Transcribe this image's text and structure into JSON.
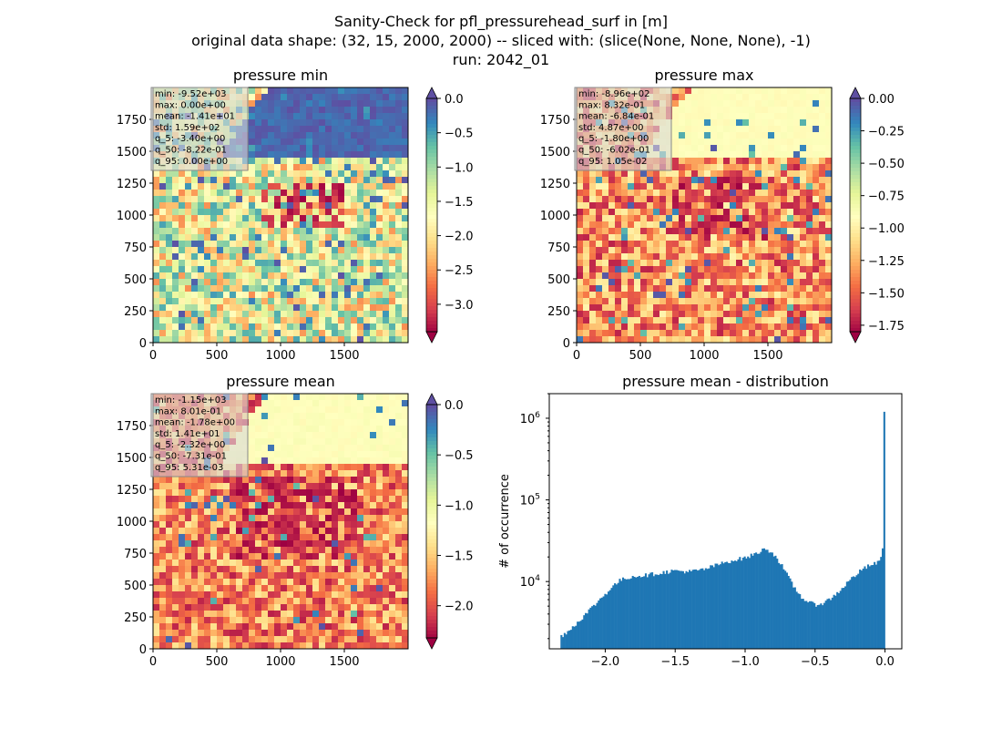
{
  "figure": {
    "suptitle_lines": [
      "Sanity-Check for pfl_pressurehead_surf in [m]",
      "original data shape: (32, 15, 2000, 2000) -- sliced with: (slice(None, None, None), -1)",
      "run: 2042_01"
    ]
  },
  "chart_data": [
    {
      "type": "heatmap",
      "title": "pressure min",
      "colormap": "Spectral",
      "xticks": [
        0,
        500,
        1000,
        1500
      ],
      "yticks": [
        0,
        250,
        500,
        750,
        1000,
        1250,
        1500,
        1750
      ],
      "xlim": [
        0,
        2000
      ],
      "ylim": [
        0,
        2000
      ],
      "colorbar_ticks": [
        0.0,
        -0.5,
        -1.0,
        -1.5,
        -2.0,
        -2.5,
        -3.0
      ],
      "colorbar_tick_labels": [
        "0.0",
        "−0.5",
        "−1.0",
        "−1.5",
        "−2.0",
        "−2.5",
        "−3.0"
      ],
      "colorbar_range": [
        -3.4,
        0.0
      ],
      "colorbar_extend": "both",
      "stats_box": [
        "min: -9.52e+03",
        "max: 0.00e+00",
        "mean: -1.41e+01",
        "std: 1.59e+02",
        "q_5: -3.40e+00",
        "q_50: -8.22e-01",
        "q_95: 0.00e+00"
      ]
    },
    {
      "type": "heatmap",
      "title": "pressure max",
      "colormap": "Spectral",
      "xticks": [
        0,
        500,
        1000,
        1500
      ],
      "yticks": [
        0,
        250,
        500,
        750,
        1000,
        1250,
        1500,
        1750
      ],
      "xlim": [
        0,
        2000
      ],
      "ylim": [
        0,
        2000
      ],
      "colorbar_ticks": [
        0.0,
        -0.25,
        -0.5,
        -0.75,
        -1.0,
        -1.25,
        -1.5,
        -1.75
      ],
      "colorbar_tick_labels": [
        "0.00",
        "−0.25",
        "−0.50",
        "−0.75",
        "−1.00",
        "−1.25",
        "−1.50",
        "−1.75"
      ],
      "colorbar_range": [
        -1.8,
        0.0
      ],
      "colorbar_extend": "both",
      "stats_box": [
        "min: -8.96e+02",
        "max: 8.32e-01",
        "mean: -6.84e-01",
        "std: 4.87e+00",
        "q_5: -1.80e+00",
        "q_50: -6.02e-01",
        "q_95: 1.05e-02"
      ]
    },
    {
      "type": "heatmap",
      "title": "pressure mean",
      "colormap": "Spectral",
      "xticks": [
        0,
        500,
        1000,
        1500
      ],
      "yticks": [
        0,
        250,
        500,
        750,
        1000,
        1250,
        1500,
        1750
      ],
      "xlim": [
        0,
        2000
      ],
      "ylim": [
        0,
        2000
      ],
      "colorbar_ticks": [
        0.0,
        -0.5,
        -1.0,
        -1.5,
        -2.0
      ],
      "colorbar_tick_labels": [
        "0.0",
        "−0.5",
        "−1.0",
        "−1.5",
        "−2.0"
      ],
      "colorbar_range": [
        -2.32,
        0.0
      ],
      "colorbar_extend": "both",
      "stats_box": [
        "min: -1.15e+03",
        "max: 8.01e-01",
        "mean: -1.78e+00",
        "std: 1.41e+01",
        "q_5: -2.32e+00",
        "q_50: -7.31e-01",
        "q_95: 5.31e-03"
      ]
    },
    {
      "type": "bar",
      "title": "pressure mean - distribution",
      "ylabel": "# of occurrence",
      "xlabel": "",
      "yscale": "log",
      "xlim": [
        -2.4,
        0.12
      ],
      "ylim": [
        1500,
        2000000
      ],
      "xticks": [
        -2.0,
        -1.5,
        -1.0,
        -0.5,
        0.0
      ],
      "xtick_labels": [
        "−2.0",
        "−1.5",
        "−1.0",
        "−0.5",
        "0.0"
      ],
      "ytick_labels": [
        "10^4",
        "10^5",
        "10^6"
      ],
      "bin_range": [
        -2.32,
        0.0
      ],
      "bar_color": "#1f77b4",
      "profile_x": [
        -2.32,
        -2.25,
        -2.18,
        -2.1,
        -2.02,
        -1.95,
        -1.9,
        -1.85,
        -1.8,
        -1.7,
        -1.6,
        -1.5,
        -1.4,
        -1.3,
        -1.2,
        -1.1,
        -1.0,
        -0.95,
        -0.9,
        -0.85,
        -0.8,
        -0.75,
        -0.7,
        -0.65,
        -0.6,
        -0.55,
        -0.5,
        -0.45,
        -0.4,
        -0.35,
        -0.3,
        -0.25,
        -0.2,
        -0.15,
        -0.1,
        -0.05,
        -0.03,
        -0.015,
        -0.005,
        0.0
      ],
      "profile_counts": [
        2100,
        2600,
        3400,
        4700,
        6500,
        8600,
        10200,
        11000,
        11600,
        12000,
        12800,
        13600,
        13200,
        14000,
        16000,
        18000,
        19500,
        21000,
        23000,
        25500,
        22000,
        17000,
        12000,
        8500,
        6500,
        5600,
        5200,
        5400,
        6000,
        7000,
        8500,
        10500,
        12500,
        14500,
        16000,
        17000,
        19000,
        27000,
        100000,
        1200000
      ]
    }
  ]
}
